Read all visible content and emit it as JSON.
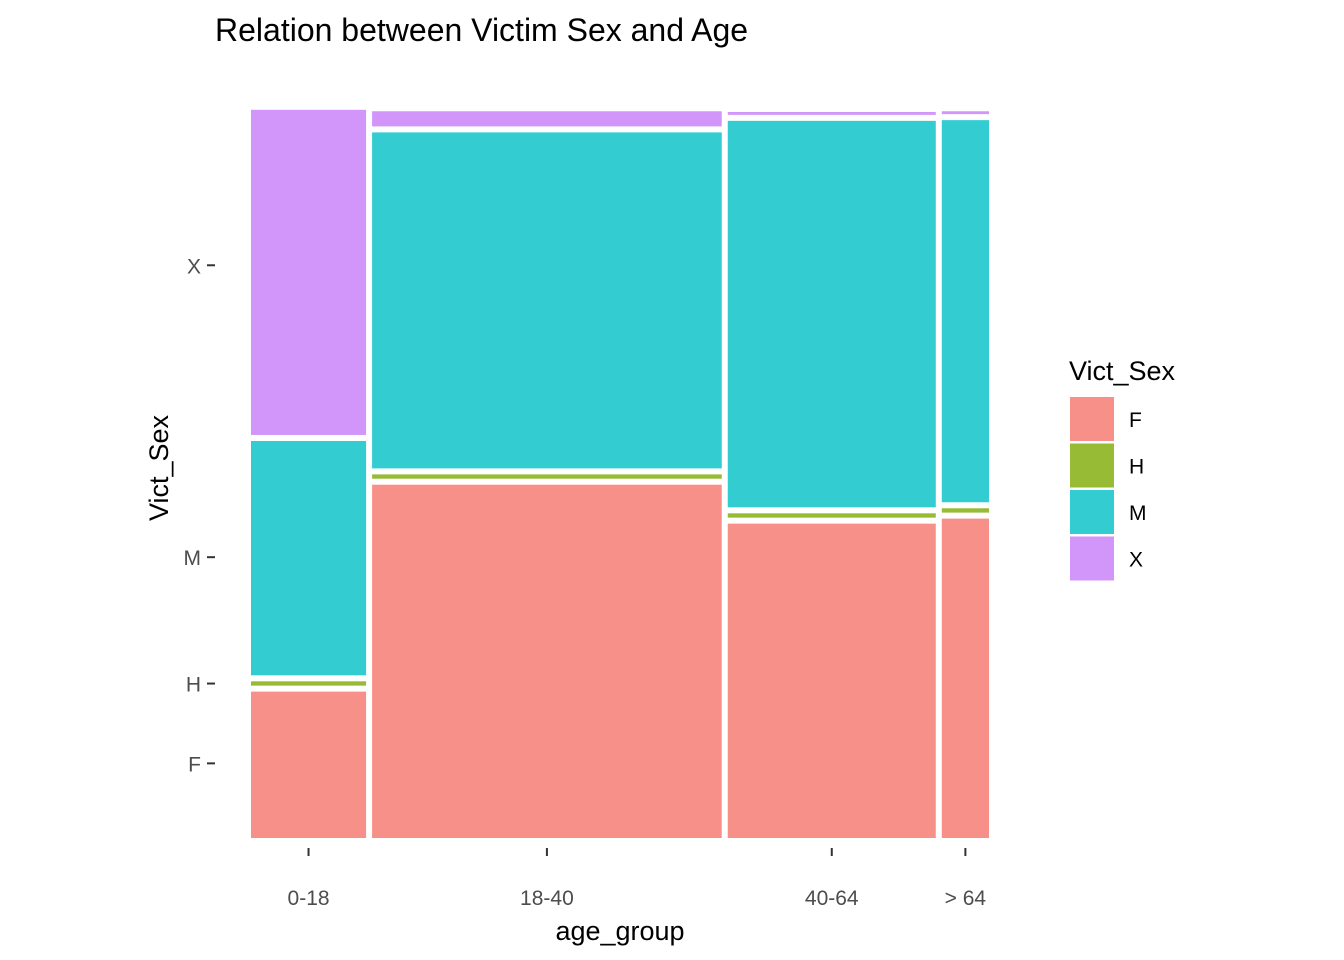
{
  "chart_data": {
    "type": "mosaic",
    "title": "Relation between Victim Sex and Age",
    "xlabel": "age_group",
    "ylabel": "Vict_Sex",
    "grid": false,
    "categories": [
      "0-18",
      "18-40",
      "40-64",
      "> 64"
    ],
    "category_share": [
      0.156,
      0.474,
      0.282,
      0.064
    ],
    "sexes": [
      "F",
      "H",
      "M",
      "X"
    ],
    "colors": {
      "F": "#F8908A",
      "H": "#97BB35",
      "M": "#33CCD1",
      "X": "#D296FB"
    },
    "proportions": [
      {
        "age_group": "0-18",
        "F": 0.203,
        "H": 0.006,
        "M": 0.325,
        "X": 0.451
      },
      {
        "age_group": "18-40",
        "F": 0.49,
        "H": 0.006,
        "M": 0.466,
        "X": 0.021
      },
      {
        "age_group": "40-64",
        "F": 0.436,
        "H": 0.006,
        "M": 0.536,
        "X": 0.004
      },
      {
        "age_group": "> 64",
        "F": 0.443,
        "H": 0.006,
        "M": 0.53,
        "X": 0.004
      }
    ],
    "y_ticks": [
      {
        "label": "F",
        "value": 0.101
      },
      {
        "label": "H",
        "value": 0.209
      },
      {
        "label": "M",
        "value": 0.38
      },
      {
        "label": "X",
        "value": 0.775
      }
    ],
    "legend": {
      "title": "Vict_Sex",
      "position": "right",
      "entries": [
        "F",
        "H",
        "M",
        "X"
      ]
    }
  }
}
